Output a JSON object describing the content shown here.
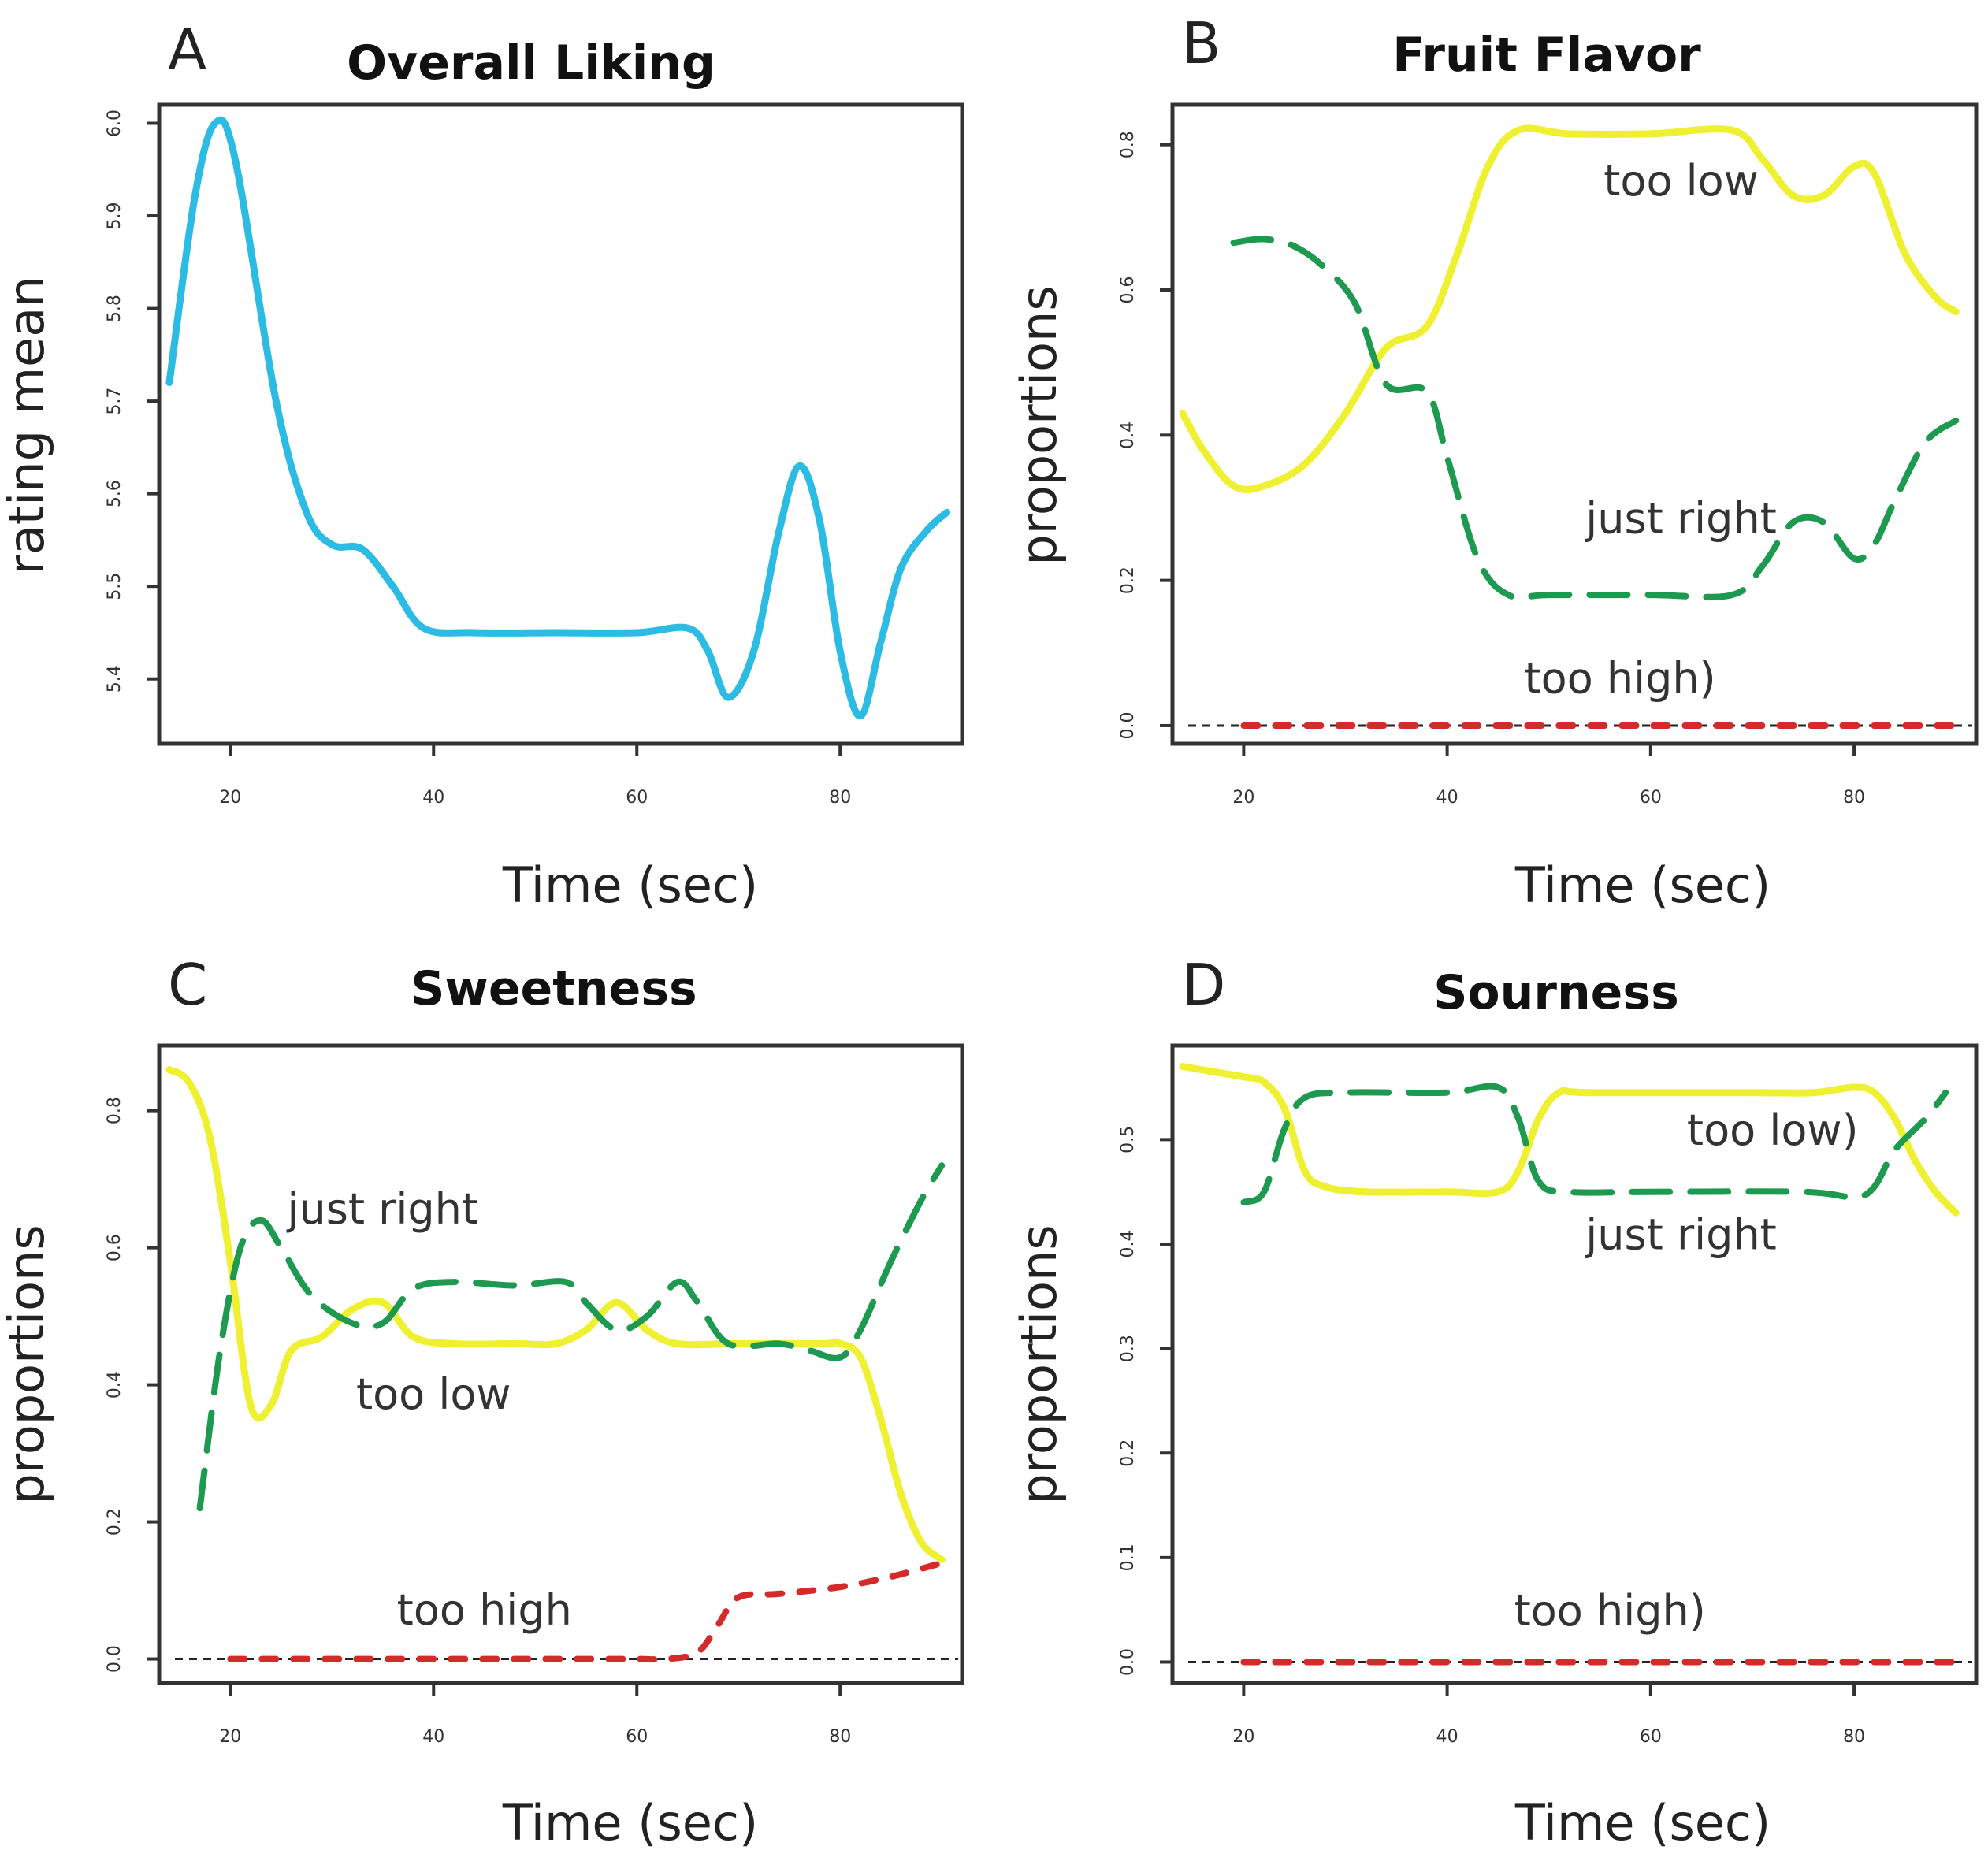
{
  "chart_data": [
    {
      "panel": "A",
      "title": "Overall Liking",
      "type": "line",
      "xlabel": "Time (sec)",
      "ylabel": "rating mean",
      "xlim": [
        13,
        92
      ],
      "ylim": [
        5.33,
        6.02
      ],
      "xticks": [
        20,
        40,
        60,
        80
      ],
      "xtick_labels": [
        "20",
        "40",
        "60",
        "80"
      ],
      "yticks": [
        5.4,
        5.5,
        5.6,
        5.7,
        5.8,
        5.9,
        6.0
      ],
      "ytick_labels": [
        "5.4",
        "5.5",
        "5.6",
        "5.7",
        "5.8",
        "5.9",
        "6.0"
      ],
      "series": [
        {
          "name": "Overall Liking",
          "color": "#2bbbe3",
          "dash": "solid",
          "points": [
            [
              14,
              5.72
            ],
            [
              16.5,
              5.92
            ],
            [
              18.5,
              6.0
            ],
            [
              20.5,
              5.96
            ],
            [
              24.5,
              5.7
            ],
            [
              27.5,
              5.58
            ],
            [
              30,
              5.545
            ],
            [
              33,
              5.54
            ],
            [
              36,
              5.5
            ],
            [
              39,
              5.455
            ],
            [
              44,
              5.45
            ],
            [
              52,
              5.45
            ],
            [
              60,
              5.45
            ],
            [
              65,
              5.455
            ],
            [
              67,
              5.43
            ],
            [
              69,
              5.38
            ],
            [
              71.5,
              5.43
            ],
            [
              74,
              5.56
            ],
            [
              76,
              5.63
            ],
            [
              78,
              5.57
            ],
            [
              80,
              5.43
            ],
            [
              82,
              5.36
            ],
            [
              84,
              5.44
            ],
            [
              86,
              5.52
            ],
            [
              88.5,
              5.56
            ],
            [
              90.5,
              5.58
            ]
          ]
        }
      ],
      "annotations": []
    },
    {
      "panel": "B",
      "title": "Fruit Flavor",
      "type": "line",
      "xlabel": "Time (sec)",
      "ylabel": "proportions",
      "xlim": [
        13,
        92
      ],
      "ylim": [
        -0.025,
        0.855
      ],
      "xticks": [
        20,
        40,
        60,
        80
      ],
      "xtick_labels": [
        "20",
        "40",
        "60",
        "80"
      ],
      "yticks": [
        0.0,
        0.2,
        0.4,
        0.6,
        0.8
      ],
      "ytick_labels": [
        "0.0",
        "0.2",
        "0.4",
        "0.6",
        "0.8"
      ],
      "baseline": 0.0,
      "series": [
        {
          "name": "too low",
          "color": "#f0f032",
          "dash": "solid",
          "points": [
            [
              14,
              0.43
            ],
            [
              16,
              0.38
            ],
            [
              19,
              0.33
            ],
            [
              22,
              0.33
            ],
            [
              26,
              0.36
            ],
            [
              30,
              0.43
            ],
            [
              34,
              0.52
            ],
            [
              38,
              0.55
            ],
            [
              41,
              0.65
            ],
            [
              44,
              0.77
            ],
            [
              47,
              0.82
            ],
            [
              52,
              0.815
            ],
            [
              60,
              0.815
            ],
            [
              68,
              0.82
            ],
            [
              71,
              0.78
            ],
            [
              74,
              0.73
            ],
            [
              77,
              0.73
            ],
            [
              80,
              0.77
            ],
            [
              82,
              0.76
            ],
            [
              85,
              0.65
            ],
            [
              88,
              0.59
            ],
            [
              90,
              0.57
            ]
          ]
        },
        {
          "name": "just right",
          "color": "#1e9a50",
          "dash": "dashed",
          "points": [
            [
              19,
              0.665
            ],
            [
              22,
              0.67
            ],
            [
              25,
              0.66
            ],
            [
              28,
              0.63
            ],
            [
              31,
              0.58
            ],
            [
              34,
              0.47
            ],
            [
              38,
              0.46
            ],
            [
              40,
              0.37
            ],
            [
              43,
              0.23
            ],
            [
              46,
              0.18
            ],
            [
              50,
              0.18
            ],
            [
              60,
              0.18
            ],
            [
              68,
              0.18
            ],
            [
              71,
              0.22
            ],
            [
              74,
              0.28
            ],
            [
              77,
              0.28
            ],
            [
              80,
              0.23
            ],
            [
              82,
              0.25
            ],
            [
              84,
              0.31
            ],
            [
              87,
              0.39
            ],
            [
              90,
              0.42
            ]
          ]
        },
        {
          "name": "too high",
          "color": "#d42a2a",
          "dash": "dashed",
          "points": [
            [
              20,
              0.0
            ],
            [
              90,
              0.0
            ]
          ]
        }
      ],
      "annotations": [
        {
          "text": "too low",
          "x": 63,
          "y": 0.73
        },
        {
          "text": "just right",
          "x": 63,
          "y": 0.265
        },
        {
          "text": "too high)",
          "x": 57,
          "y": 0.045
        }
      ]
    },
    {
      "panel": "C",
      "title": "Sweetness",
      "type": "line",
      "xlabel": "Time (sec)",
      "ylabel": "proportions",
      "xlim": [
        13,
        92
      ],
      "ylim": [
        -0.035,
        0.895
      ],
      "xticks": [
        20,
        40,
        60,
        80
      ],
      "xtick_labels": [
        "20",
        "40",
        "60",
        "80"
      ],
      "yticks": [
        0.0,
        0.2,
        0.4,
        0.6,
        0.8
      ],
      "ytick_labels": [
        "0.0",
        "0.2",
        "0.4",
        "0.6",
        "0.8"
      ],
      "baseline": 0.0,
      "series": [
        {
          "name": "too low",
          "color": "#f0f032",
          "dash": "solid",
          "points": [
            [
              14,
              0.86
            ],
            [
              16,
              0.84
            ],
            [
              18,
              0.76
            ],
            [
              20,
              0.58
            ],
            [
              22,
              0.37
            ],
            [
              24,
              0.37
            ],
            [
              26,
              0.45
            ],
            [
              29,
              0.47
            ],
            [
              32,
              0.51
            ],
            [
              35,
              0.52
            ],
            [
              38,
              0.47
            ],
            [
              42,
              0.46
            ],
            [
              48,
              0.46
            ],
            [
              52,
              0.46
            ],
            [
              55,
              0.48
            ],
            [
              58,
              0.52
            ],
            [
              61,
              0.48
            ],
            [
              64,
              0.46
            ],
            [
              70,
              0.46
            ],
            [
              78,
              0.46
            ],
            [
              80,
              0.46
            ],
            [
              82,
              0.44
            ],
            [
              84,
              0.35
            ],
            [
              86,
              0.24
            ],
            [
              88,
              0.17
            ],
            [
              90,
              0.145
            ]
          ]
        },
        {
          "name": "just right",
          "color": "#1e9a50",
          "dash": "dashed",
          "points": [
            [
              17,
              0.22
            ],
            [
              19,
              0.45
            ],
            [
              21,
              0.6
            ],
            [
              23,
              0.64
            ],
            [
              25,
              0.6
            ],
            [
              28,
              0.53
            ],
            [
              32,
              0.49
            ],
            [
              35,
              0.49
            ],
            [
              38,
              0.54
            ],
            [
              42,
              0.55
            ],
            [
              48,
              0.545
            ],
            [
              53,
              0.55
            ],
            [
              55,
              0.52
            ],
            [
              58,
              0.48
            ],
            [
              61,
              0.5
            ],
            [
              64,
              0.55
            ],
            [
              66,
              0.52
            ],
            [
              69,
              0.46
            ],
            [
              74,
              0.46
            ],
            [
              77,
              0.45
            ],
            [
              80,
              0.44
            ],
            [
              82,
              0.48
            ],
            [
              85,
              0.58
            ],
            [
              88,
              0.67
            ],
            [
              90,
              0.72
            ]
          ]
        },
        {
          "name": "too high",
          "color": "#d42a2a",
          "dash": "dashed",
          "points": [
            [
              20,
              0.0
            ],
            [
              30,
              0.0
            ],
            [
              40,
              0.0
            ],
            [
              50,
              0.0
            ],
            [
              55,
              0.0
            ],
            [
              60,
              0.0
            ],
            [
              63,
              0.0
            ],
            [
              66,
              0.01
            ],
            [
              68,
              0.05
            ],
            [
              70,
              0.09
            ],
            [
              74,
              0.095
            ],
            [
              80,
              0.105
            ],
            [
              85,
              0.12
            ],
            [
              90,
              0.14
            ]
          ]
        }
      ],
      "annotations": [
        {
          "text": "just right",
          "x": 35,
          "y": 0.635
        },
        {
          "text": "too low",
          "x": 40,
          "y": 0.365
        },
        {
          "text": "too high",
          "x": 45,
          "y": 0.05
        }
      ]
    },
    {
      "panel": "D",
      "title": "Sourness",
      "type": "line",
      "xlabel": "Time (sec)",
      "ylabel": "proportions",
      "xlim": [
        13,
        92
      ],
      "ylim": [
        -0.02,
        0.59
      ],
      "xticks": [
        20,
        40,
        60,
        80
      ],
      "xtick_labels": [
        "20",
        "40",
        "60",
        "80"
      ],
      "yticks": [
        0.0,
        0.1,
        0.2,
        0.3,
        0.4,
        0.5
      ],
      "ytick_labels": [
        "0.0",
        "0.1",
        "0.2",
        "0.3",
        "0.4",
        "0.5"
      ],
      "baseline": 0.0,
      "series": [
        {
          "name": "too low",
          "color": "#f0f032",
          "dash": "solid",
          "points": [
            [
              14,
              0.57
            ],
            [
              17,
              0.565
            ],
            [
              20,
              0.56
            ],
            [
              22,
              0.555
            ],
            [
              24,
              0.53
            ],
            [
              26,
              0.47
            ],
            [
              28,
              0.455
            ],
            [
              32,
              0.45
            ],
            [
              40,
              0.45
            ],
            [
              45,
              0.45
            ],
            [
              47,
              0.47
            ],
            [
              49,
              0.52
            ],
            [
              51,
              0.545
            ],
            [
              54,
              0.545
            ],
            [
              70,
              0.545
            ],
            [
              76,
              0.545
            ],
            [
              80,
              0.55
            ],
            [
              82,
              0.545
            ],
            [
              84,
              0.52
            ],
            [
              86,
              0.48
            ],
            [
              88,
              0.45
            ],
            [
              90,
              0.43
            ]
          ]
        },
        {
          "name": "just right",
          "color": "#1e9a50",
          "dash": "dashed",
          "points": [
            [
              20,
              0.44
            ],
            [
              22,
              0.45
            ],
            [
              24,
              0.51
            ],
            [
              26,
              0.54
            ],
            [
              30,
              0.545
            ],
            [
              40,
              0.545
            ],
            [
              45,
              0.55
            ],
            [
              47,
              0.52
            ],
            [
              49,
              0.46
            ],
            [
              52,
              0.45
            ],
            [
              60,
              0.45
            ],
            [
              75,
              0.45
            ],
            [
              80,
              0.445
            ],
            [
              82,
              0.455
            ],
            [
              84,
              0.49
            ],
            [
              87,
              0.52
            ],
            [
              89,
              0.545
            ]
          ]
        },
        {
          "name": "too high",
          "color": "#d42a2a",
          "dash": "dashed",
          "points": [
            [
              20,
              0.0
            ],
            [
              90,
              0.0
            ]
          ]
        }
      ],
      "annotations": [
        {
          "text": "too low)",
          "x": 72,
          "y": 0.495
        },
        {
          "text": "just right",
          "x": 63,
          "y": 0.395
        },
        {
          "text": "too high)",
          "x": 56,
          "y": 0.035
        }
      ]
    }
  ]
}
